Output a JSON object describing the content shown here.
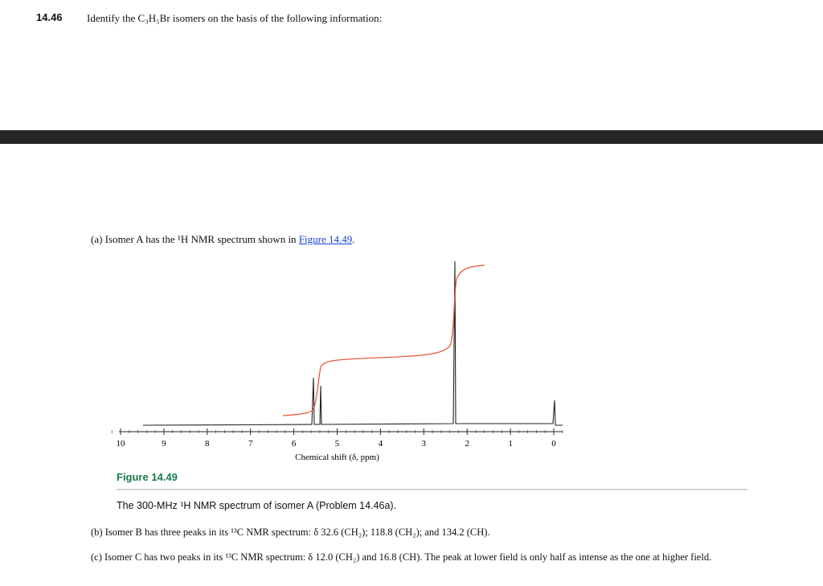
{
  "problem": {
    "number": "14.46",
    "text": "Identify the C₃H₅Br isomers on the basis of the following information:"
  },
  "part_a": {
    "text": "(a) Isomer A has the ¹H NMR spectrum shown in ",
    "link": "Figure 14.49",
    "end": "."
  },
  "figure": {
    "ticks": [
      10,
      9,
      8,
      7,
      6,
      5,
      4,
      3,
      2,
      1,
      0
    ],
    "axis_label": "Chemical shift (δ, ppm)",
    "title": "Figure 14.49",
    "caption": "The 300-MHz ¹H NMR spectrum of isomer A (Problem 14.46a)."
  },
  "part_b": {
    "text": "(b) Isomer B has three peaks in its ¹³C NMR spectrum: δ 32.6 (CH₂); 118.8 (CH₂); and 134.2 (CH)."
  },
  "part_c": {
    "text": "(c) Isomer C has two peaks in its ¹³C NMR spectrum: δ 12.0 (CH₂) and 16.8 (CH). The peak at lower field is only half as intense as the one at higher field."
  }
}
